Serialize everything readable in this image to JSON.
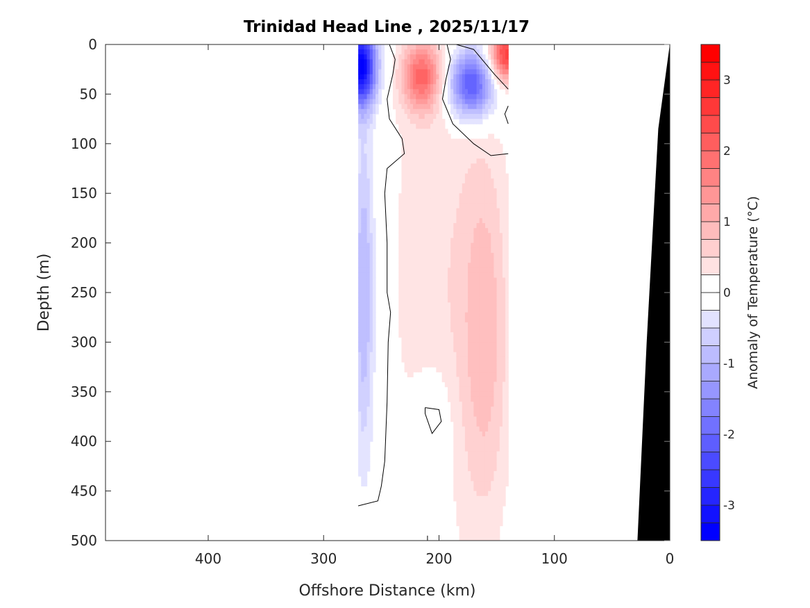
{
  "chart_data": {
    "type": "heatmap",
    "subtype": "filled-contour section",
    "title": "Trinidad Head Line , 2025/11/17",
    "xlabel": "Offshore Distance (km)",
    "ylabel": "Depth (m)",
    "xlim": [
      489,
      0
    ],
    "ylim": [
      0,
      500
    ],
    "x_reversed": true,
    "y_reversed": true,
    "xticks": [
      400,
      300,
      200,
      100,
      0
    ],
    "xtick_labels": [
      "400",
      "300",
      "200",
      "100",
      "0"
    ],
    "yticks": [
      0,
      50,
      100,
      150,
      200,
      250,
      300,
      350,
      400,
      450,
      500
    ],
    "ytick_labels": [
      "0",
      "50",
      "100",
      "150",
      "200",
      "250",
      "300",
      "350",
      "400",
      "450",
      "500"
    ],
    "grid": false,
    "colorbar": {
      "label": "Anomaly of Temperature (°C)",
      "range": [
        -3.5,
        3.5
      ],
      "level_step": 0.25,
      "ticks": [
        3,
        2,
        1,
        0,
        -1,
        -2,
        -3
      ],
      "tick_labels": [
        "3",
        "2",
        "1",
        "0",
        "-1",
        "-2",
        "-3"
      ],
      "colormap": "blue-white-red",
      "min_color": "#0000ff",
      "zero_color": "#ffffff",
      "max_color": "#ff0000",
      "placement": "right"
    },
    "data_extent_km": [
      270,
      140
    ],
    "zero_contour_color": "#000000",
    "bathymetry_color": "#000000",
    "bathymetry": {
      "x_km": [
        0,
        10,
        20,
        28,
        28,
        0
      ],
      "depth_m": [
        0,
        85,
        300,
        500,
        500,
        500
      ]
    },
    "regions": [
      {
        "name": "cold-core-offshore",
        "x_km": [
          270,
          255
        ],
        "depth_m": [
          0,
          80
        ],
        "peak_anomaly": -3.25
      },
      {
        "name": "cold-band-offshore",
        "x_km": [
          270,
          248
        ],
        "depth_m": [
          80,
          390
        ],
        "peak_anomaly": -1.0
      },
      {
        "name": "warm-core-nearsurface",
        "x_km": [
          240,
          195
        ],
        "depth_m": [
          0,
          80
        ],
        "peak_anomaly": 1.75
      },
      {
        "name": "cold-eddy",
        "x_km": [
          195,
          140
        ],
        "depth_m": [
          0,
          90
        ],
        "peak_anomaly": -2.25
      },
      {
        "name": "warm-corner",
        "x_km": [
          165,
          140
        ],
        "depth_m": [
          0,
          45
        ],
        "peak_anomaly": 2.5
      },
      {
        "name": "warm-column-deep",
        "x_km": [
          185,
          140
        ],
        "depth_m": [
          120,
          500
        ],
        "peak_anomaly": 0.75
      },
      {
        "name": "neutral-patch",
        "x_km": [
          225,
          185
        ],
        "depth_m": [
          300,
          450
        ],
        "peak_anomaly": 0.0
      }
    ]
  }
}
